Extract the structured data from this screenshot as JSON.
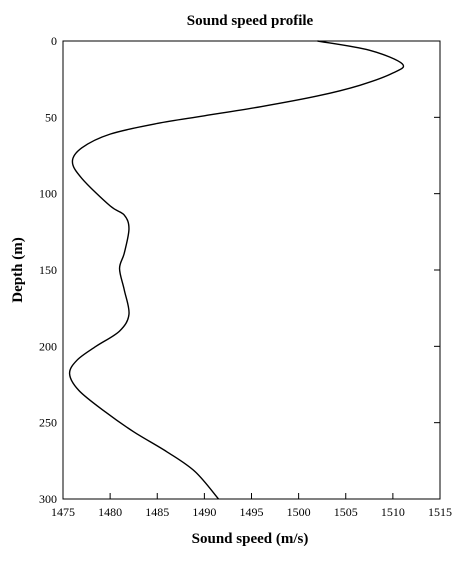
{
  "chart_data": {
    "type": "line",
    "title": "Sound speed profile",
    "xlabel": "Sound speed (m/s)",
    "ylabel": "Depth (m)",
    "xlim": [
      1475,
      1515
    ],
    "ylim": [
      0,
      300
    ],
    "y_inverted": true,
    "grid": false,
    "legend": "none",
    "x_ticks": [
      "1475",
      "1480",
      "1485",
      "1490",
      "1495",
      "1500",
      "1505",
      "1510",
      "1515"
    ],
    "y_ticks": [
      "0",
      "50",
      "100",
      "150",
      "200",
      "250",
      "300"
    ],
    "line_color": "#000000",
    "series": [
      {
        "x": [
          1502.0,
          1507.5,
          1511.0,
          1510.0,
          1506.5,
          1502.0,
          1496.0,
          1490.0,
          1485.0,
          1480.0,
          1477.0,
          1476.0,
          1477.0,
          1480.0,
          1481.5,
          1482.0,
          1481.5,
          1481.0,
          1481.5,
          1482.0,
          1481.0,
          1478.5,
          1476.5,
          1475.7,
          1476.7,
          1479.5,
          1482.5,
          1486.0,
          1489.0,
          1491.5
        ],
        "y": [
          0,
          6,
          15,
          21,
          29,
          36,
          43,
          49,
          54,
          61,
          70,
          79,
          90,
          108,
          114,
          123,
          139,
          149,
          163,
          179,
          190,
          200,
          209,
          218,
          229,
          243,
          256,
          269,
          282,
          300
        ]
      }
    ]
  }
}
